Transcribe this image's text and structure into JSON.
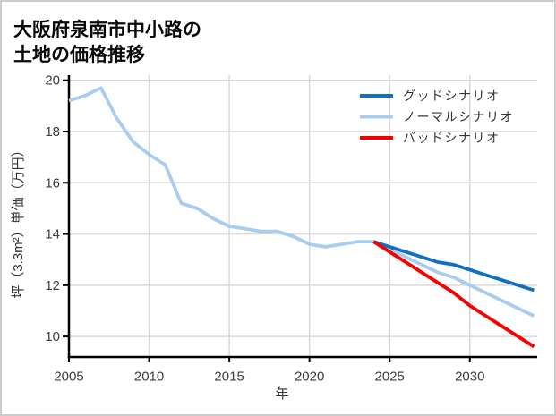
{
  "title": {
    "line1": "大阪府泉南市中小路の",
    "line2": "土地の価格推移"
  },
  "chart_data": {
    "type": "line",
    "title": "大阪府泉南市中小路の土地の価格推移",
    "xlabel": "年",
    "ylabel": "坪（3.3m²）単価（万円）",
    "xlim": [
      2005,
      2034.2
    ],
    "ylim": [
      9.2,
      20.2
    ],
    "x_ticks": [
      2005,
      2010,
      2015,
      2020,
      2025,
      2030
    ],
    "y_ticks": [
      10,
      12,
      14,
      16,
      18,
      20
    ],
    "grid": true,
    "grid_color": "#d8d8d8",
    "axis_color": "#000000",
    "tick_label_color": "#3d3d3d",
    "legend_position": "top-right-inside",
    "series": [
      {
        "id": "history",
        "legend_label": null,
        "color": "#a8cdf0",
        "x": [
          2005,
          2006,
          2007,
          2008,
          2009,
          2010,
          2011,
          2012,
          2013,
          2014,
          2015,
          2016,
          2017,
          2018,
          2019,
          2020,
          2021,
          2022,
          2023,
          2024
        ],
        "values": [
          19.2,
          19.4,
          19.7,
          18.5,
          17.6,
          17.1,
          16.7,
          15.2,
          15.0,
          14.6,
          14.3,
          14.2,
          14.1,
          14.1,
          13.9,
          13.6,
          13.5,
          13.6,
          13.7,
          13.7
        ]
      },
      {
        "id": "normal",
        "legend_label": "ノーマルシナリオ",
        "color": "#a8cdf0",
        "x": [
          2024,
          2025,
          2026,
          2027,
          2028,
          2029,
          2030,
          2031,
          2032,
          2033,
          2034
        ],
        "values": [
          13.7,
          13.4,
          13.1,
          12.8,
          12.5,
          12.3,
          12.0,
          11.7,
          11.4,
          11.1,
          10.8
        ]
      },
      {
        "id": "good",
        "legend_label": "グッドシナリオ",
        "color": "#1170c2",
        "x": [
          2024,
          2025,
          2026,
          2027,
          2028,
          2029,
          2030,
          2031,
          2032,
          2033,
          2034
        ],
        "values": [
          13.7,
          13.5,
          13.3,
          13.1,
          12.9,
          12.8,
          12.6,
          12.4,
          12.2,
          12.0,
          11.8
        ]
      },
      {
        "id": "bad",
        "legend_label": "バッドシナリオ",
        "color": "#f70000",
        "x": [
          2024,
          2025,
          2026,
          2027,
          2028,
          2029,
          2030,
          2031,
          2032,
          2033,
          2034
        ],
        "values": [
          13.7,
          13.3,
          12.9,
          12.5,
          12.1,
          11.7,
          11.2,
          10.8,
          10.4,
          10.0,
          9.6
        ]
      }
    ],
    "legend_order": [
      "good",
      "normal",
      "bad"
    ]
  }
}
